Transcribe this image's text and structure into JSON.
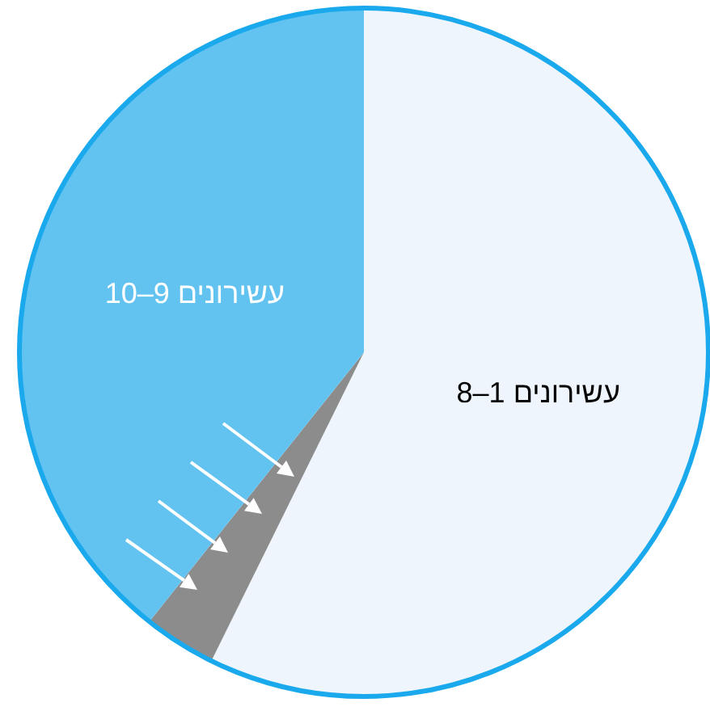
{
  "chart_data": {
    "type": "pie",
    "categories": [
      "עשירונים 1–8",
      null,
      "עשירונים 9–10"
    ],
    "values": [
      57.3,
      3.4,
      39.3
    ],
    "colors": [
      "#eef5fc",
      "#8c8c8c",
      "#63c3f0"
    ]
  }
}
